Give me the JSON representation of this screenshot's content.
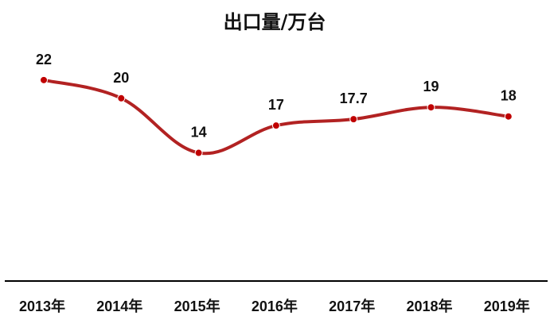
{
  "chart_data": {
    "type": "line",
    "title": "出口量/万台",
    "categories": [
      "2013年",
      "2014年",
      "2015年",
      "2016年",
      "2017年",
      "2018年",
      "2019年"
    ],
    "series": [
      {
        "values": [
          22,
          20,
          14,
          17,
          17.7,
          19,
          18
        ],
        "labels": [
          "22",
          "20",
          "14",
          "17",
          "17.7",
          "19",
          "18"
        ]
      }
    ],
    "ylim": [
      0,
      26
    ],
    "smooth": true,
    "grid": false,
    "legend": "none",
    "colors": {
      "line": "#B22222",
      "marker": "#C00000",
      "axis": "#000000"
    }
  }
}
